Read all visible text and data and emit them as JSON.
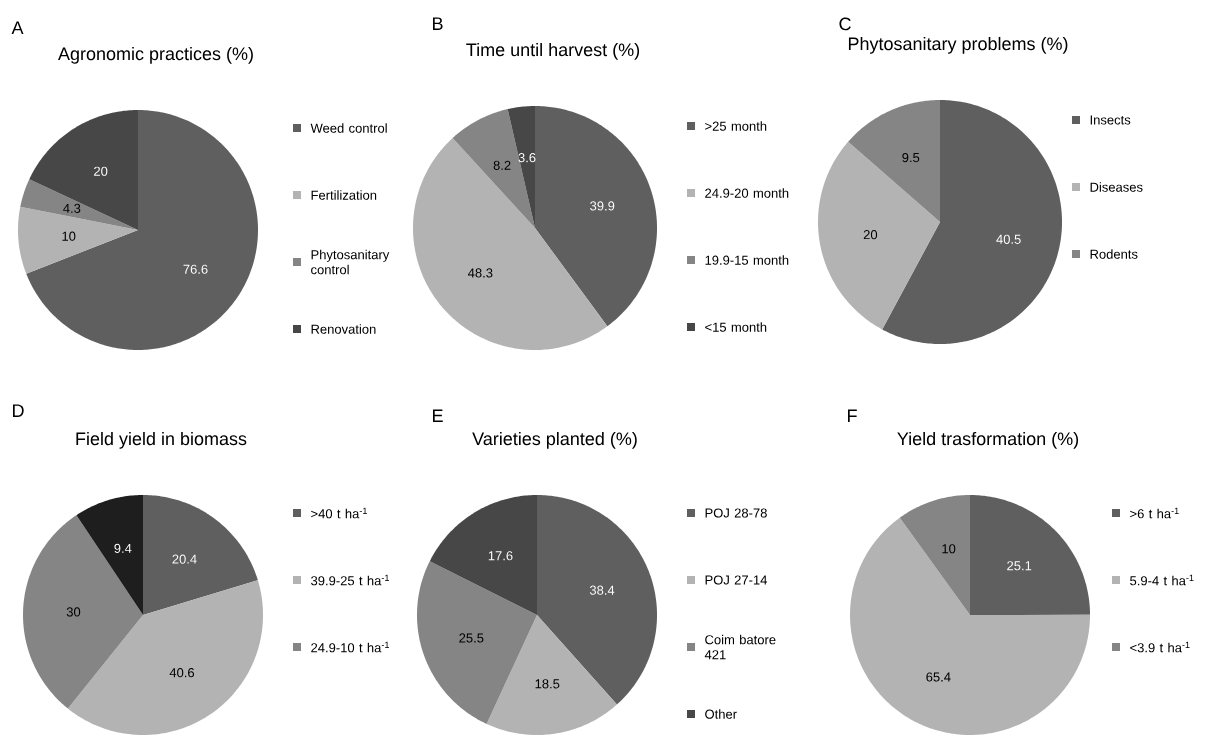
{
  "chart_data": [
    {
      "type": "pie",
      "title": "Agronomic practices (%)",
      "annotations": [
        "A"
      ],
      "categories": [
        "Weed control",
        "Fertilization",
        "Phytosanitary control",
        "Renovation"
      ],
      "values": [
        76.6,
        10,
        4.3,
        20
      ],
      "colors": [
        "#5f5f5f",
        "#b3b3b3",
        "#858585",
        "#474747"
      ],
      "data_labels": true,
      "legend": "right"
    },
    {
      "type": "pie",
      "title": "Time until harvest (%)",
      "annotations": [
        "B"
      ],
      "categories": [
        ">25 month",
        "24.9-20 month",
        "19.9-15 month",
        "<15 month"
      ],
      "values": [
        39.9,
        48.3,
        8.2,
        3.6
      ],
      "colors": [
        "#5f5f5f",
        "#b3b3b3",
        "#858585",
        "#474747"
      ],
      "data_labels": true,
      "legend": "right"
    },
    {
      "type": "pie",
      "title": "Phytosanitary problems (%)",
      "annotations": [
        "C"
      ],
      "categories": [
        "Insects",
        "Diseases",
        "Rodents"
      ],
      "values": [
        40.5,
        20,
        9.5
      ],
      "colors": [
        "#5f5f5f",
        "#b3b3b3",
        "#858585"
      ],
      "data_labels": true,
      "legend": "right"
    },
    {
      "type": "pie",
      "title": "Field yield in biomass",
      "annotations": [
        "D"
      ],
      "categories": [
        ">40 t ha$^{-1}$",
        "39.9-25 t ha$^{-1}$",
        "24.9-10 t ha$^{-1}$",
        null
      ],
      "values": [
        20.4,
        40.6,
        30,
        9.4
      ],
      "colors": [
        "#5f5f5f",
        "#b3b3b3",
        "#858585",
        "#1e1e1e"
      ],
      "data_labels": true,
      "legend": "right"
    },
    {
      "type": "pie",
      "title": "Varieties planted (%)",
      "annotations": [
        "E"
      ],
      "categories": [
        "POJ 28-78",
        "POJ 27-14",
        "Coim batore 421",
        "Other"
      ],
      "values": [
        38.4,
        18.5,
        25.5,
        17.6
      ],
      "colors": [
        "#5f5f5f",
        "#b3b3b3",
        "#858585",
        "#474747"
      ],
      "data_labels": true,
      "legend": "right"
    },
    {
      "type": "pie",
      "title": "Yield trasformation (%)",
      "annotations": [
        "F"
      ],
      "categories": [
        ">6 t ha$^{-1}$",
        "5.9-4 t ha$^{-1}$",
        "<3.9 t ha$^{-1}$"
      ],
      "values": [
        25.1,
        65.4,
        10
      ],
      "colors": [
        "#5f5f5f",
        "#b3b3b3",
        "#858585"
      ],
      "data_labels": true,
      "legend": "right"
    }
  ]
}
